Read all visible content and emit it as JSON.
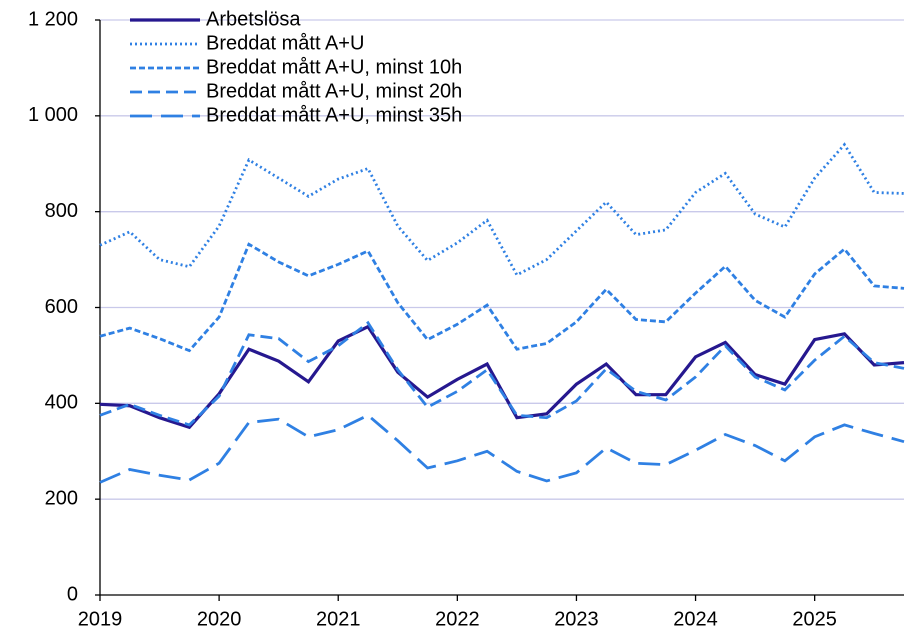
{
  "chart_data": {
    "type": "line",
    "x": [
      2019,
      2019.25,
      2019.5,
      2019.75,
      2020,
      2020.25,
      2020.5,
      2020.75,
      2021,
      2021.25,
      2021.5,
      2021.75,
      2022,
      2022.25,
      2022.5,
      2022.75,
      2023,
      2023.25,
      2023.5,
      2023.75,
      2024,
      2024.25,
      2024.5,
      2024.75,
      2025,
      2025.25,
      2025.5,
      2025.75
    ],
    "series": [
      {
        "name": "Arbetslösa",
        "color": "#26188f",
        "dash": "solid",
        "values": [
          398,
          395,
          370,
          350,
          420,
          513,
          488,
          445,
          530,
          560,
          465,
          413,
          450,
          482,
          370,
          378,
          440,
          482,
          418,
          418,
          497,
          527,
          460,
          440,
          533,
          545,
          480,
          485
        ]
      },
      {
        "name": "Breddat mått A+U",
        "color": "#2f80e3",
        "dash": "dotted",
        "values": [
          730,
          758,
          700,
          685,
          770,
          908,
          870,
          832,
          868,
          890,
          770,
          698,
          735,
          782,
          668,
          700,
          760,
          820,
          752,
          762,
          840,
          880,
          795,
          768,
          870,
          940,
          840,
          838
        ]
      },
      {
        "name": "Breddat mått A+U, minst 10h",
        "color": "#2f80e3",
        "dash": "short",
        "values": [
          540,
          557,
          535,
          510,
          580,
          732,
          695,
          666,
          690,
          718,
          610,
          533,
          565,
          605,
          513,
          525,
          570,
          638,
          575,
          570,
          630,
          686,
          615,
          580,
          670,
          722,
          645,
          640
        ]
      },
      {
        "name": "Breddat mått A+U, minst 20h",
        "color": "#2f80e3",
        "dash": "medium",
        "values": [
          375,
          398,
          375,
          355,
          415,
          543,
          535,
          487,
          520,
          568,
          470,
          392,
          425,
          470,
          375,
          370,
          405,
          472,
          425,
          407,
          455,
          520,
          455,
          428,
          490,
          540,
          485,
          473
        ]
      },
      {
        "name": "Breddat mått A+U, minst 35h",
        "color": "#2f80e3",
        "dash": "long",
        "values": [
          235,
          262,
          250,
          240,
          275,
          360,
          367,
          330,
          345,
          375,
          322,
          265,
          280,
          300,
          258,
          238,
          255,
          307,
          275,
          272,
          302,
          335,
          312,
          280,
          330,
          355,
          337,
          320
        ]
      }
    ],
    "xlim": [
      2019,
      2025.75
    ],
    "xticks": [
      2019,
      2020,
      2021,
      2022,
      2023,
      2024,
      2025
    ],
    "ylim": [
      0,
      1200
    ],
    "yticks": [
      0,
      200,
      400,
      600,
      800,
      {
        "value": 1000,
        "label": "1 000"
      },
      {
        "value": 1200,
        "label": "1 200"
      }
    ],
    "grid": true,
    "legend": "top-left"
  }
}
